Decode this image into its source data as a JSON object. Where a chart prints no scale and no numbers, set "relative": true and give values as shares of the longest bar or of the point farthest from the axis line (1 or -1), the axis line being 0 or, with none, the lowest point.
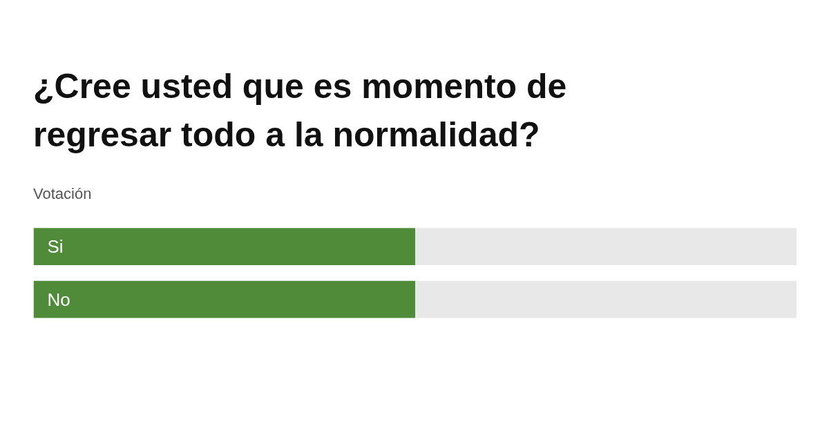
{
  "chart_data": {
    "type": "bar",
    "orientation": "horizontal",
    "relative": true,
    "stacked": true,
    "title": "¿Cree usted que es momento de regresar todo a la normalidad?",
    "subtitle": "Votación",
    "categories": [
      "Si",
      "No"
    ],
    "series": [
      {
        "color": "#508b3a",
        "values": [
          0.5,
          0.5
        ]
      },
      {
        "color": "#e8e8e8",
        "values": [
          0.5,
          0.5
        ]
      }
    ]
  }
}
